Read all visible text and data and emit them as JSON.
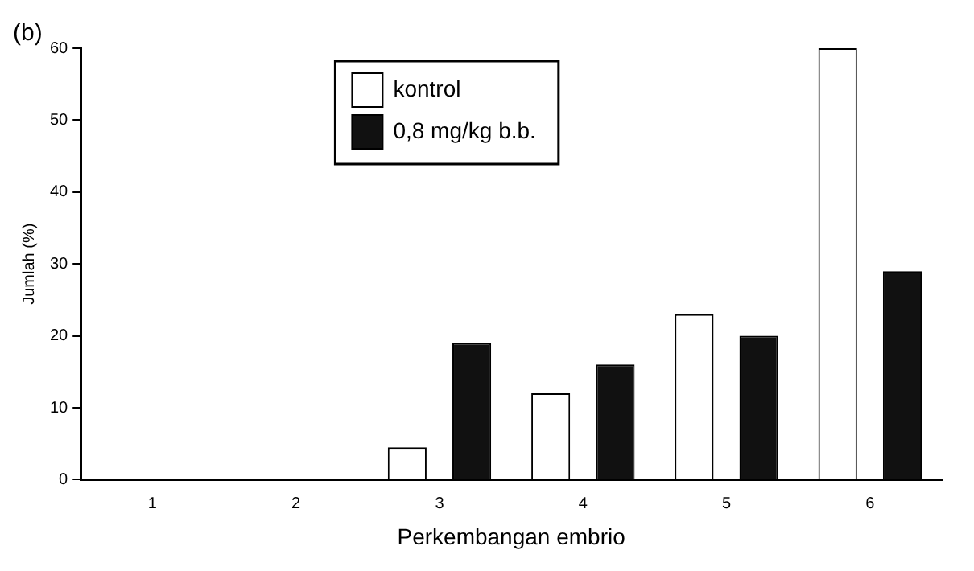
{
  "chart_data": {
    "type": "bar",
    "title": "(b)",
    "xlabel": "Perkembangan embrio",
    "ylabel": "Jumlah (%)",
    "categories": [
      "1",
      "2",
      "3",
      "4",
      "5",
      "6"
    ],
    "series": [
      {
        "name": "kontrol",
        "color": "#ffffff",
        "values": [
          0,
          0,
          4.5,
          12,
          23,
          60
        ]
      },
      {
        "name": "0,8 mg/kg b.b.",
        "color": "#111111",
        "values": [
          0,
          0,
          19,
          16,
          20,
          29
        ]
      }
    ],
    "ylim": [
      0,
      60
    ],
    "yticks": [
      0,
      10,
      20,
      30,
      40,
      50,
      60
    ],
    "grid": false,
    "legend": "top"
  }
}
